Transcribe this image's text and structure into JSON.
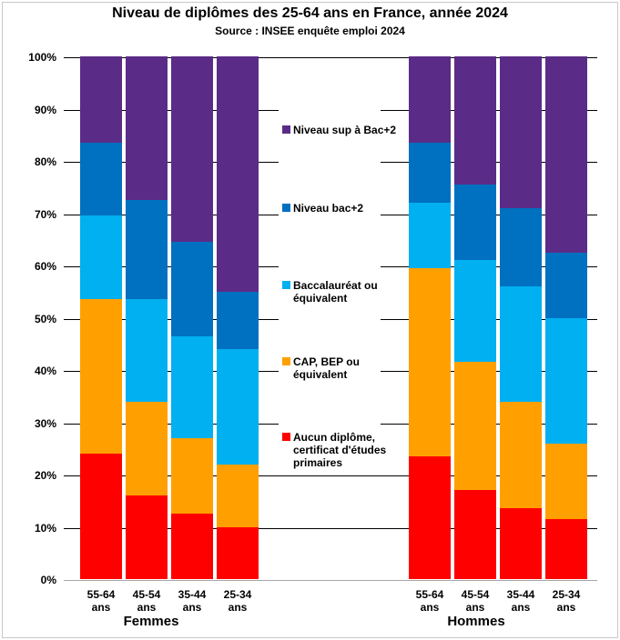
{
  "title": "Niveau de diplômes des 25-64 ans en France, année 2024",
  "subtitle": "Source : INSEE enquête emploi 2024",
  "y_axis": {
    "tick_labels": [
      "0%",
      "10%",
      "20%",
      "30%",
      "40%",
      "50%",
      "60%",
      "70%",
      "80%",
      "90%",
      "100%"
    ]
  },
  "chart_data": {
    "type": "bar",
    "stacked": true,
    "unit": "%",
    "ylim": [
      0,
      100
    ],
    "grid": true,
    "legend_position": "center-between-groups",
    "title": "Niveau de diplômes des 25-64 ans en France, année 2024",
    "subtitle": "Source : INSEE enquête emploi 2024",
    "groups": [
      "Femmes",
      "Hommes"
    ],
    "categories": [
      "55-64",
      "45-54",
      "35-44",
      "25-34"
    ],
    "category_unit": "ans",
    "series": [
      {
        "name": "Aucun diplôme, certificat d'études primaires",
        "color": "#FF0000",
        "values": {
          "Femmes": [
            24,
            16,
            12.5,
            10
          ],
          "Hommes": [
            23.5,
            17,
            13.5,
            11.5
          ]
        }
      },
      {
        "name": "CAP, BEP ou équivalent",
        "color": "#FFA000",
        "values": {
          "Femmes": [
            29.5,
            18,
            14.5,
            12
          ],
          "Hommes": [
            36,
            24.5,
            20.5,
            14.5
          ]
        }
      },
      {
        "name": "Baccalauréat ou équivalent",
        "color": "#00B0F0",
        "values": {
          "Femmes": [
            16,
            19.5,
            19.5,
            22
          ],
          "Hommes": [
            12.5,
            19.5,
            22,
            24
          ]
        }
      },
      {
        "name": "Niveau bac+2",
        "color": "#0070C0",
        "values": {
          "Femmes": [
            14,
            19,
            18,
            11
          ],
          "Hommes": [
            11.5,
            14.5,
            15,
            12.5
          ]
        }
      },
      {
        "name": "Niveau sup à Bac+2",
        "color": "#5B2C87",
        "values": {
          "Femmes": [
            16.5,
            27.5,
            35.5,
            45
          ],
          "Hommes": [
            16.5,
            24.5,
            29,
            37.5
          ]
        }
      }
    ],
    "legend_top_to_bottom": [
      "Niveau sup à Bac+2",
      "Niveau bac+2",
      "Baccalauréat ou équivalent",
      "CAP, BEP ou équivalent",
      "Aucun diplôme, certificat d'études primaires"
    ]
  }
}
